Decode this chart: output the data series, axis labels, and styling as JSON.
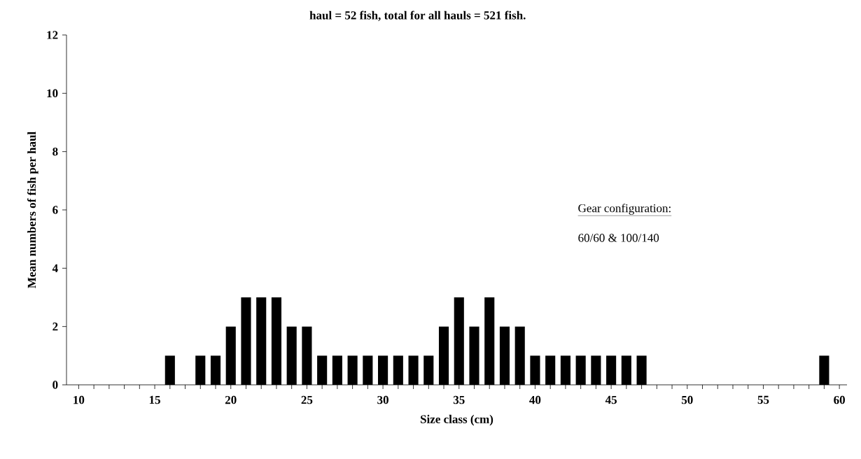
{
  "chart_data": {
    "type": "bar",
    "title": "haul = 52 fish, total for all hauls = 521 fish.",
    "xlabel": "Size class (cm)",
    "ylabel": "Mean numbers of fish per haul",
    "annotations": [
      "Gear configuration:",
      "60/60 & 100/140"
    ],
    "x": [
      10,
      11,
      12,
      13,
      14,
      15,
      16,
      17,
      18,
      19,
      20,
      21,
      22,
      23,
      24,
      25,
      26,
      27,
      28,
      29,
      30,
      31,
      32,
      33,
      34,
      35,
      36,
      37,
      38,
      39,
      40,
      41,
      42,
      43,
      44,
      45,
      46,
      47,
      48,
      49,
      50,
      51,
      52,
      53,
      54,
      55,
      56,
      57,
      58,
      59,
      60
    ],
    "values": [
      0,
      0,
      0,
      0,
      0,
      0,
      1,
      0,
      1,
      1,
      2,
      3,
      3,
      3,
      2,
      2,
      1,
      1,
      1,
      1,
      1,
      1,
      1,
      1,
      2,
      3,
      2,
      3,
      2,
      2,
      1,
      1,
      1,
      1,
      1,
      1,
      1,
      1,
      0,
      0,
      0,
      0,
      0,
      0,
      0,
      0,
      0,
      0,
      0,
      1,
      0
    ],
    "color": "#000000",
    "xlim": [
      9.2,
      60.5
    ],
    "xticks": [
      10,
      {
        "value": 11,
        "label": null
      },
      {
        "value": 12,
        "label": null
      },
      {
        "value": 13,
        "label": null
      },
      {
        "value": 14,
        "label": null
      },
      15,
      {
        "value": 16,
        "label": null
      },
      {
        "value": 17,
        "label": null
      },
      {
        "value": 18,
        "label": null
      },
      {
        "value": 19,
        "label": null
      },
      20,
      {
        "value": 21,
        "label": null
      },
      {
        "value": 22,
        "label": null
      },
      {
        "value": 23,
        "label": null
      },
      {
        "value": 24,
        "label": null
      },
      25,
      {
        "value": 26,
        "label": null
      },
      {
        "value": 27,
        "label": null
      },
      {
        "value": 28,
        "label": null
      },
      {
        "value": 29,
        "label": null
      },
      30,
      {
        "value": 31,
        "label": null
      },
      {
        "value": 32,
        "label": null
      },
      {
        "value": 33,
        "label": null
      },
      {
        "value": 34,
        "label": null
      },
      35,
      {
        "value": 36,
        "label": null
      },
      {
        "value": 37,
        "label": null
      },
      {
        "value": 38,
        "label": null
      },
      {
        "value": 39,
        "label": null
      },
      40,
      {
        "value": 41,
        "label": null
      },
      {
        "value": 42,
        "label": null
      },
      {
        "value": 43,
        "label": null
      },
      {
        "value": 44,
        "label": null
      },
      45,
      {
        "value": 46,
        "label": null
      },
      {
        "value": 47,
        "label": null
      },
      {
        "value": 48,
        "label": null
      },
      {
        "value": 49,
        "label": null
      },
      50,
      {
        "value": 51,
        "label": null
      },
      {
        "value": 52,
        "label": null
      },
      {
        "value": 53,
        "label": null
      },
      {
        "value": 54,
        "label": null
      },
      55,
      {
        "value": 56,
        "label": null
      },
      {
        "value": 57,
        "label": null
      },
      {
        "value": 58,
        "label": null
      },
      {
        "value": 59,
        "label": null
      },
      60
    ],
    "ylim": [
      0,
      12
    ],
    "yticks": [
      0,
      2,
      4,
      6,
      8,
      10,
      12
    ],
    "grid": false
  }
}
